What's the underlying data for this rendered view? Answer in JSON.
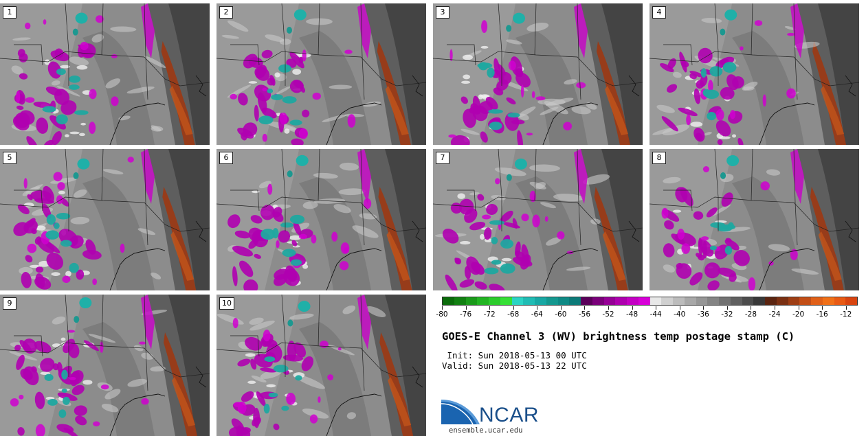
{
  "panels": [
    {
      "label": "1"
    },
    {
      "label": "2"
    },
    {
      "label": "3"
    },
    {
      "label": "4"
    },
    {
      "label": "5"
    },
    {
      "label": "6"
    },
    {
      "label": "7"
    },
    {
      "label": "8"
    },
    {
      "label": "9"
    },
    {
      "label": "10"
    }
  ],
  "colorbar": {
    "ticks": [
      "-80",
      "-76",
      "-72",
      "-68",
      "-64",
      "-60",
      "-56",
      "-52",
      "-48",
      "-44",
      "-40",
      "-36",
      "-32",
      "-28",
      "-24",
      "-20",
      "-16",
      "-12"
    ],
    "min": -80,
    "max": -10,
    "colors": [
      "#0a6b0a",
      "#118011",
      "#1a9a1a",
      "#22b422",
      "#2ccc2c",
      "#36e036",
      "#2ad4c4",
      "#20bcb4",
      "#18a8a4",
      "#14988f",
      "#0f8a85",
      "#0c7a78",
      "#5a005a",
      "#7a007a",
      "#960096",
      "#ae00ae",
      "#c400c4",
      "#d800d8",
      "#e8e8e8",
      "#d0d0d0",
      "#bcbcbc",
      "#a8a8a8",
      "#969696",
      "#848484",
      "#727272",
      "#606060",
      "#4c4c4c",
      "#383838",
      "#5a2410",
      "#7a3012",
      "#9e3e14",
      "#c24e16",
      "#e06018",
      "#f07018",
      "#e85a14",
      "#d84410"
    ]
  },
  "title": "GOES-E Channel 3 (WV) brightness temp postage stamp (C)",
  "init": " Init: Sun 2018-05-13 00 UTC",
  "valid": "Valid: Sun 2018-05-13 22 UTC",
  "logo": {
    "text": "NCAR",
    "url": "ensemble.ucar.edu",
    "color": "#1a4f8a"
  }
}
